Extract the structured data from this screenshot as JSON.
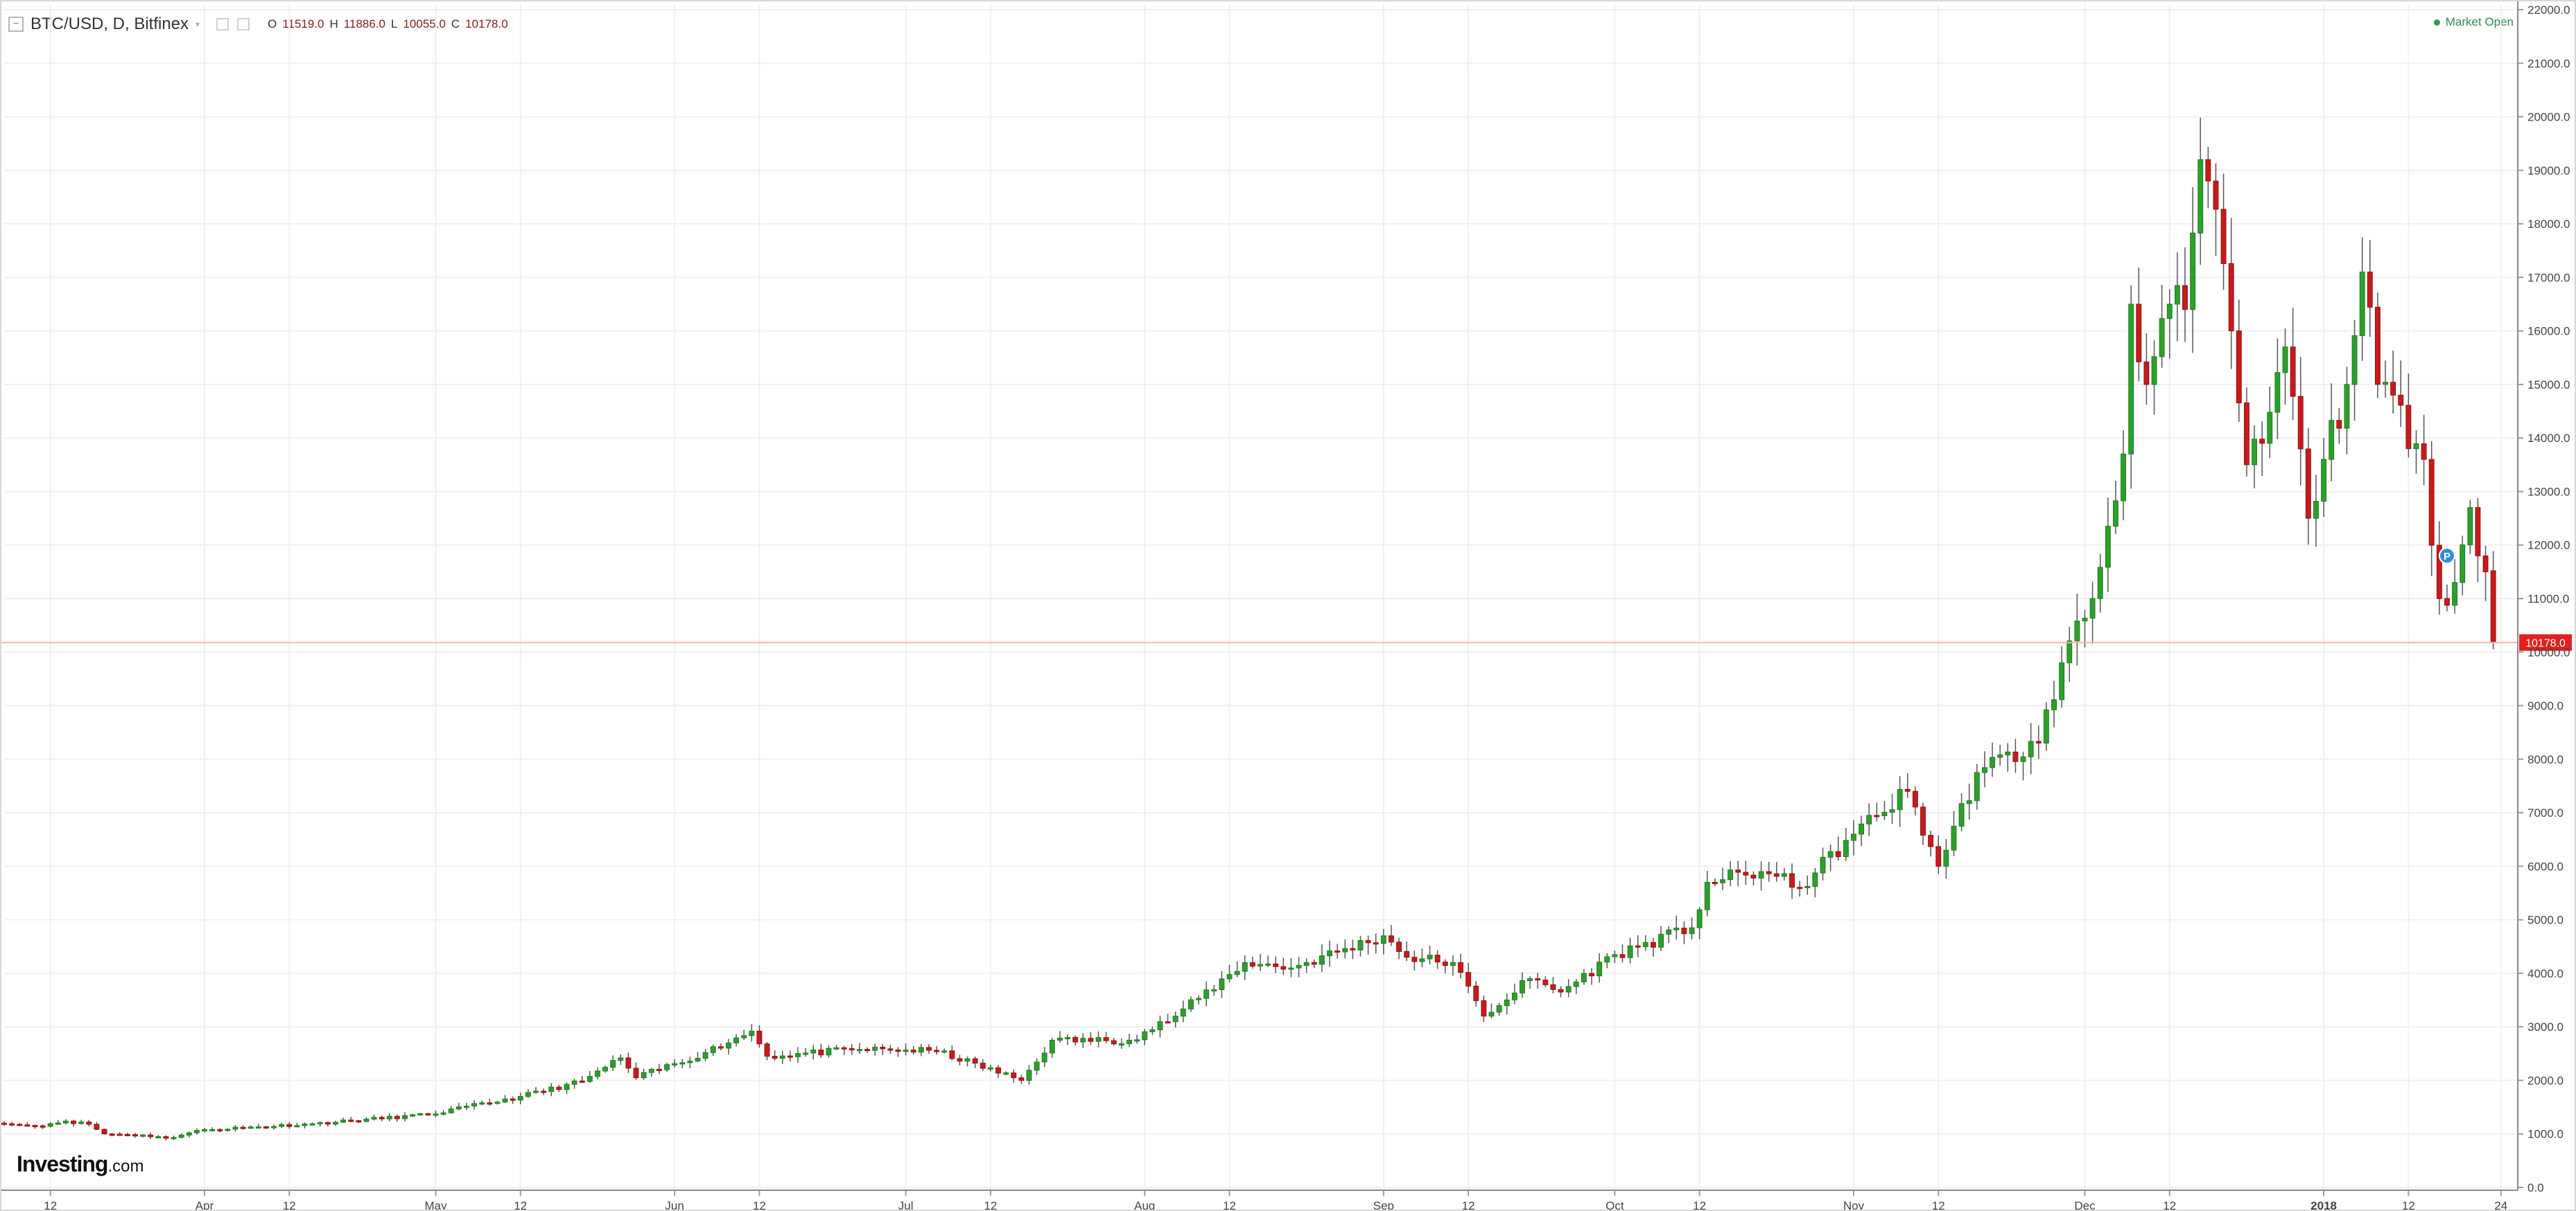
{
  "header": {
    "symbol": "BTC/USD, D, Bitfinex",
    "caret": "▾",
    "ohlc": [
      {
        "label": "O",
        "value": "11519.0"
      },
      {
        "label": "H",
        "value": "11886.0"
      },
      {
        "label": "L",
        "value": "10055.0"
      },
      {
        "label": "C",
        "value": "10178.0"
      }
    ]
  },
  "status": {
    "market_open": "Market Open"
  },
  "branding": {
    "logo_main": "Investing",
    "logo_suffix": ".com"
  },
  "colors": {
    "up": "#2ca02c",
    "down": "#c91b1b",
    "wick": "#555555",
    "grid": "#f0f0f0",
    "price_line": "#f4b5a5",
    "price_label_bg": "#e02020",
    "event_marker": "#2f8fd8"
  },
  "chart_data": {
    "type": "candlestick",
    "symbol": "BTC/USD",
    "interval": "D",
    "exchange": "Bitfinex",
    "ylim": [
      0,
      22000
    ],
    "yticks": [
      "0.0",
      "1000.0",
      "2000.0",
      "3000.0",
      "4000.0",
      "5000.0",
      "6000.0",
      "7000.0",
      "8000.0",
      "9000.0",
      "10000.0",
      "11000.0",
      "12000.0",
      "13000.0",
      "14000.0",
      "15000.0",
      "16000.0",
      "17000.0",
      "18000.0",
      "19000.0",
      "20000.0",
      "21000.0",
      "22000.0"
    ],
    "xlim": [
      "2017-03-06",
      "2018-01-26"
    ],
    "xticks": [
      {
        "date": "2017-03-12",
        "label": "12"
      },
      {
        "date": "2017-04-01",
        "label": "Apr"
      },
      {
        "date": "2017-04-12",
        "label": "12"
      },
      {
        "date": "2017-05-01",
        "label": "May"
      },
      {
        "date": "2017-05-12",
        "label": "12"
      },
      {
        "date": "2017-06-01",
        "label": "Jun"
      },
      {
        "date": "2017-06-12",
        "label": "12"
      },
      {
        "date": "2017-07-01",
        "label": "Jul"
      },
      {
        "date": "2017-07-12",
        "label": "12"
      },
      {
        "date": "2017-08-01",
        "label": "Aug"
      },
      {
        "date": "2017-08-12",
        "label": "12"
      },
      {
        "date": "2017-09-01",
        "label": "Sep"
      },
      {
        "date": "2017-09-12",
        "label": "12"
      },
      {
        "date": "2017-10-01",
        "label": "Oct"
      },
      {
        "date": "2017-10-12",
        "label": "12"
      },
      {
        "date": "2017-11-01",
        "label": "Nov"
      },
      {
        "date": "2017-11-12",
        "label": "12"
      },
      {
        "date": "2017-12-01",
        "label": "Dec"
      },
      {
        "date": "2017-12-12",
        "label": "12"
      },
      {
        "date": "2018-01-01",
        "label": "2018"
      },
      {
        "date": "2018-01-12",
        "label": "12"
      },
      {
        "date": "2018-01-24",
        "label": "24"
      }
    ],
    "current_price": 10178,
    "current_price_label": "10178.0",
    "event_marker": {
      "date": "2018-01-17",
      "value": 11800,
      "label": "P"
    },
    "grid": true,
    "anchors": [
      [
        "2017-03-06",
        1190
      ],
      [
        "2017-03-10",
        1150
      ],
      [
        "2017-03-14",
        1240
      ],
      [
        "2017-03-17",
        1180
      ],
      [
        "2017-03-19",
        1000
      ],
      [
        "2017-03-24",
        980
      ],
      [
        "2017-03-27",
        920
      ],
      [
        "2017-04-01",
        1080
      ],
      [
        "2017-04-15",
        1190
      ],
      [
        "2017-04-30",
        1360
      ],
      [
        "2017-05-12",
        1700
      ],
      [
        "2017-05-20",
        1980
      ],
      [
        "2017-05-25",
        2420
      ],
      [
        "2017-05-27",
        2050
      ],
      [
        "2017-06-05",
        2520
      ],
      [
        "2017-06-11",
        2920
      ],
      [
        "2017-06-13",
        2450
      ],
      [
        "2017-06-25",
        2580
      ],
      [
        "2017-07-05",
        2550
      ],
      [
        "2017-07-16",
        2000
      ],
      [
        "2017-07-20",
        2750
      ],
      [
        "2017-07-30",
        2750
      ],
      [
        "2017-08-05",
        3200
      ],
      [
        "2017-08-14",
        4200
      ],
      [
        "2017-08-20",
        4100
      ],
      [
        "2017-09-01",
        4700
      ],
      [
        "2017-09-04",
        4300
      ],
      [
        "2017-09-10",
        4200
      ],
      [
        "2017-09-14",
        3200
      ],
      [
        "2017-09-20",
        3900
      ],
      [
        "2017-09-24",
        3650
      ],
      [
        "2017-10-01",
        4350
      ],
      [
        "2017-10-11",
        4850
      ],
      [
        "2017-10-13",
        5700
      ],
      [
        "2017-10-20",
        5900
      ],
      [
        "2017-10-25",
        5600
      ],
      [
        "2017-11-01",
        6600
      ],
      [
        "2017-11-08",
        7400
      ],
      [
        "2017-11-12",
        6000
      ],
      [
        "2017-11-17",
        7750
      ],
      [
        "2017-11-25",
        8300
      ],
      [
        "2017-11-28",
        9800
      ],
      [
        "2017-12-02",
        11000
      ],
      [
        "2017-12-06",
        13700
      ],
      [
        "2017-12-07",
        16500
      ],
      [
        "2017-12-09",
        15000
      ],
      [
        "2017-12-12",
        16500
      ],
      [
        "2017-12-14",
        16400
      ],
      [
        "2017-12-16",
        19200
      ],
      [
        "2017-12-17",
        18800
      ],
      [
        "2017-12-20",
        16000
      ],
      [
        "2017-12-22",
        13500
      ],
      [
        "2017-12-24",
        13900
      ],
      [
        "2017-12-27",
        15700
      ],
      [
        "2017-12-30",
        12500
      ],
      [
        "2018-01-01",
        13600
      ],
      [
        "2018-01-04",
        15000
      ],
      [
        "2018-01-06",
        17100
      ],
      [
        "2018-01-08",
        15000
      ],
      [
        "2018-01-10",
        14800
      ],
      [
        "2018-01-12",
        13800
      ],
      [
        "2018-01-14",
        13600
      ],
      [
        "2018-01-16",
        11000
      ],
      [
        "2018-01-18",
        11300
      ],
      [
        "2018-01-20",
        12700
      ],
      [
        "2018-01-22",
        11500
      ],
      [
        "2018-01-23",
        10178
      ]
    ]
  }
}
